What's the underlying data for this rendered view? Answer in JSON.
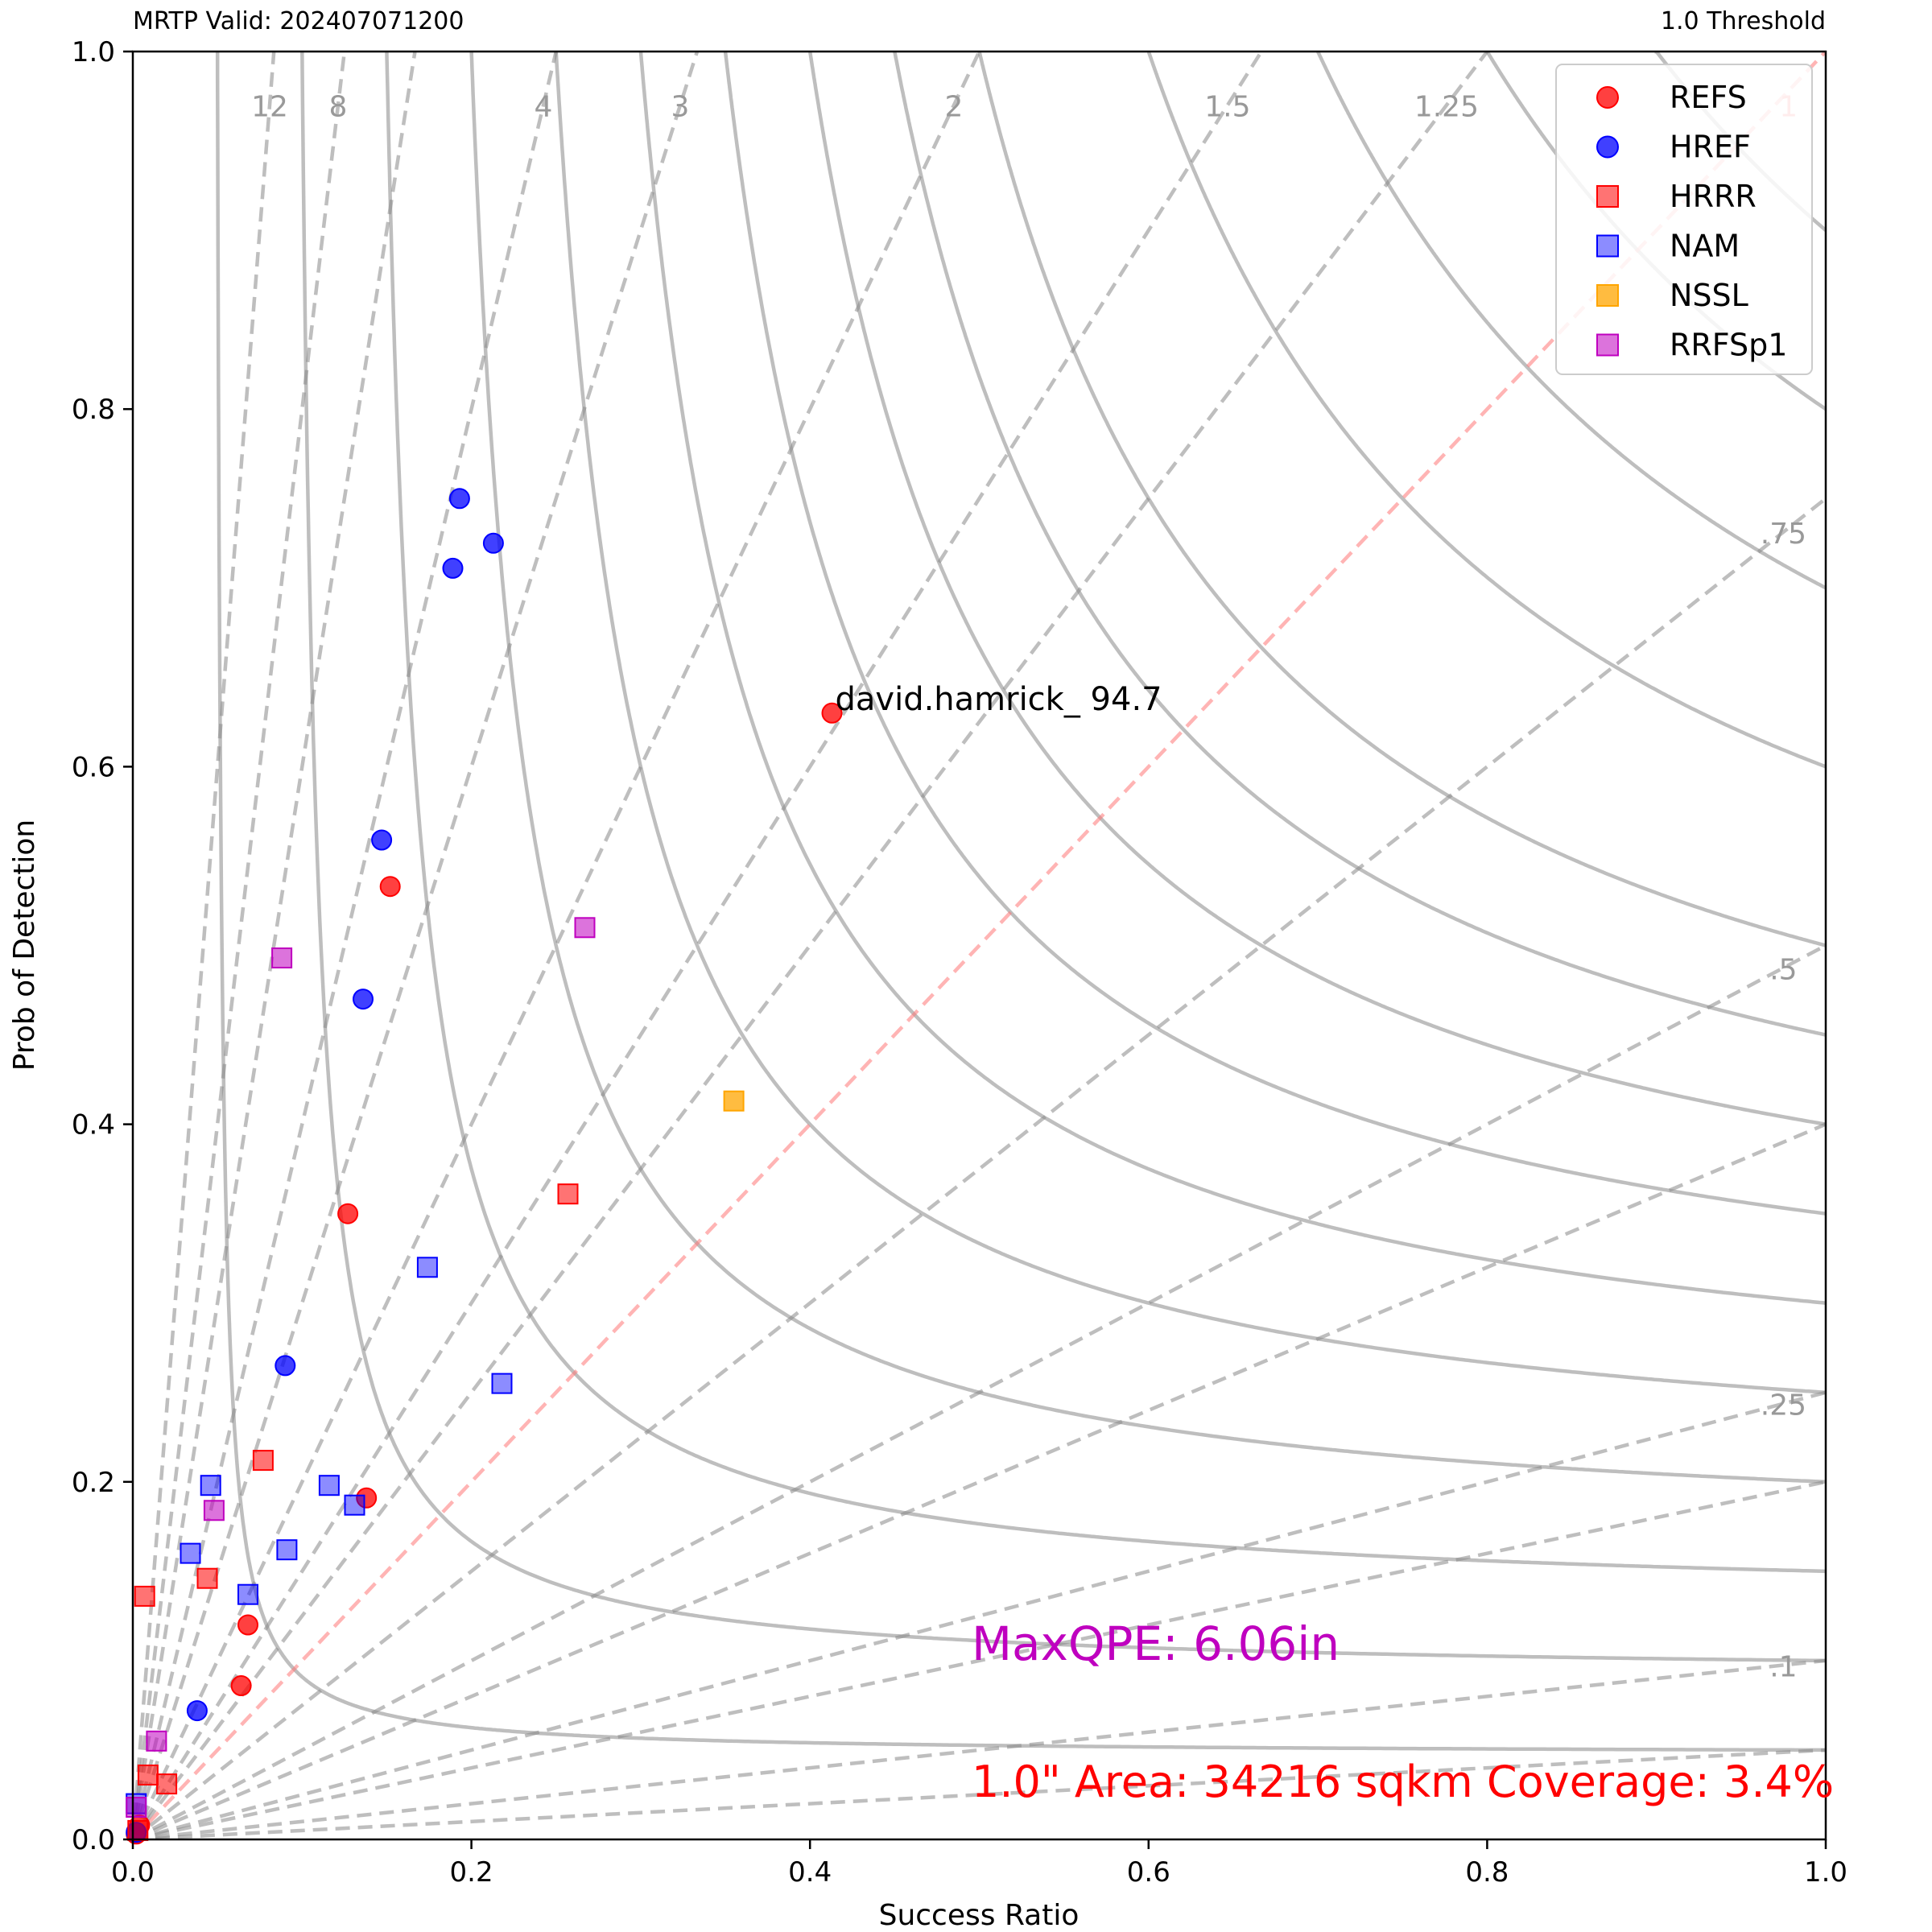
{
  "header": {
    "left": "MRTP Valid: 202407071200",
    "right": "1.0 Threshold"
  },
  "chart_data": {
    "type": "scatter",
    "title": "",
    "xlabel": "Success Ratio",
    "ylabel": "Prob of Detection",
    "xlim": [
      0.0,
      1.0
    ],
    "ylim": [
      0.0,
      1.0
    ],
    "xticks": [
      "0.0",
      "0.2",
      "0.4",
      "0.6",
      "0.8",
      "1.0"
    ],
    "yticks": [
      "0.0",
      "0.2",
      "0.4",
      "0.6",
      "0.8",
      "1.0"
    ],
    "grid": false,
    "legend_position": "top-right",
    "bias_lines": [
      {
        "value": 12,
        "label": "12"
      },
      {
        "value": 8,
        "label": "8"
      },
      {
        "value": 4,
        "label": "4"
      },
      {
        "value": 3,
        "label": "3"
      },
      {
        "value": 2,
        "label": "2"
      },
      {
        "value": 1.5,
        "label": "1.5"
      },
      {
        "value": 1.25,
        "label": "1.25"
      },
      {
        "value": 1,
        "label": "1"
      },
      {
        "value": 0.75,
        "label": ".75"
      },
      {
        "value": 0.5,
        "label": ".5"
      },
      {
        "value": 0.25,
        "label": ".25"
      },
      {
        "value": 0.1,
        "label": ".1"
      },
      {
        "value": 6,
        "label": ""
      },
      {
        "value": 0.4,
        "label": ""
      },
      {
        "value": 0.2,
        "label": ""
      },
      {
        "value": 0.05,
        "label": ""
      }
    ],
    "csi_contours": [
      0.05,
      0.1,
      0.15,
      0.2,
      0.25,
      0.3,
      0.35,
      0.4,
      0.45,
      0.5,
      0.6,
      0.7,
      0.8,
      0.9
    ],
    "series": [
      {
        "name": "REFS",
        "marker": "circle",
        "color": "#ff0000",
        "opacity": 0.75,
        "points": [
          [
            0.413,
            0.63
          ],
          [
            0.152,
            0.533
          ],
          [
            0.127,
            0.35
          ],
          [
            0.138,
            0.191
          ],
          [
            0.068,
            0.12
          ],
          [
            0.064,
            0.086
          ],
          [
            0.002,
            0.003
          ],
          [
            0.004,
            0.008
          ]
        ]
      },
      {
        "name": "HREF",
        "marker": "circle",
        "color": "#0000ff",
        "opacity": 0.75,
        "points": [
          [
            0.193,
            0.75
          ],
          [
            0.213,
            0.725
          ],
          [
            0.189,
            0.711
          ],
          [
            0.147,
            0.559
          ],
          [
            0.136,
            0.47
          ],
          [
            0.09,
            0.265
          ],
          [
            0.038,
            0.072
          ],
          [
            0.002,
            0.004
          ]
        ]
      },
      {
        "name": "HRRR",
        "marker": "square",
        "color": "#ff0000",
        "opacity": 0.55,
        "points": [
          [
            0.257,
            0.361
          ],
          [
            0.077,
            0.212
          ],
          [
            0.044,
            0.146
          ],
          [
            0.007,
            0.136
          ],
          [
            0.009,
            0.036
          ],
          [
            0.02,
            0.031
          ],
          [
            0.003,
            0.005
          ]
        ]
      },
      {
        "name": "NAM",
        "marker": "square",
        "color": "#0000ff",
        "opacity": 0.45,
        "points": [
          [
            0.174,
            0.32
          ],
          [
            0.218,
            0.255
          ],
          [
            0.116,
            0.198
          ],
          [
            0.131,
            0.187
          ],
          [
            0.046,
            0.198
          ],
          [
            0.091,
            0.162
          ],
          [
            0.034,
            0.16
          ],
          [
            0.068,
            0.137
          ],
          [
            0.002,
            0.02
          ]
        ]
      },
      {
        "name": "NSSL",
        "marker": "square",
        "color": "#ffa500",
        "opacity": 0.75,
        "points": [
          [
            0.355,
            0.413
          ]
        ]
      },
      {
        "name": "RRFSp1",
        "marker": "square",
        "color": "#bf00bf",
        "opacity": 0.55,
        "points": [
          [
            0.267,
            0.51
          ],
          [
            0.088,
            0.493
          ],
          [
            0.048,
            0.184
          ],
          [
            0.014,
            0.055
          ],
          [
            0.002,
            0.018
          ]
        ]
      }
    ],
    "annotations": [
      {
        "text": "david.hamrick_ 94.7",
        "x": 0.413,
        "y": 0.63
      }
    ]
  },
  "overlay": {
    "maxqpe": "MaxQPE: 6.06in",
    "maxqpe_color": "#bf00bf",
    "area": "1.0\" Area: 34216 sqkm Coverage: 3.4%",
    "area_color": "#ff0000"
  }
}
